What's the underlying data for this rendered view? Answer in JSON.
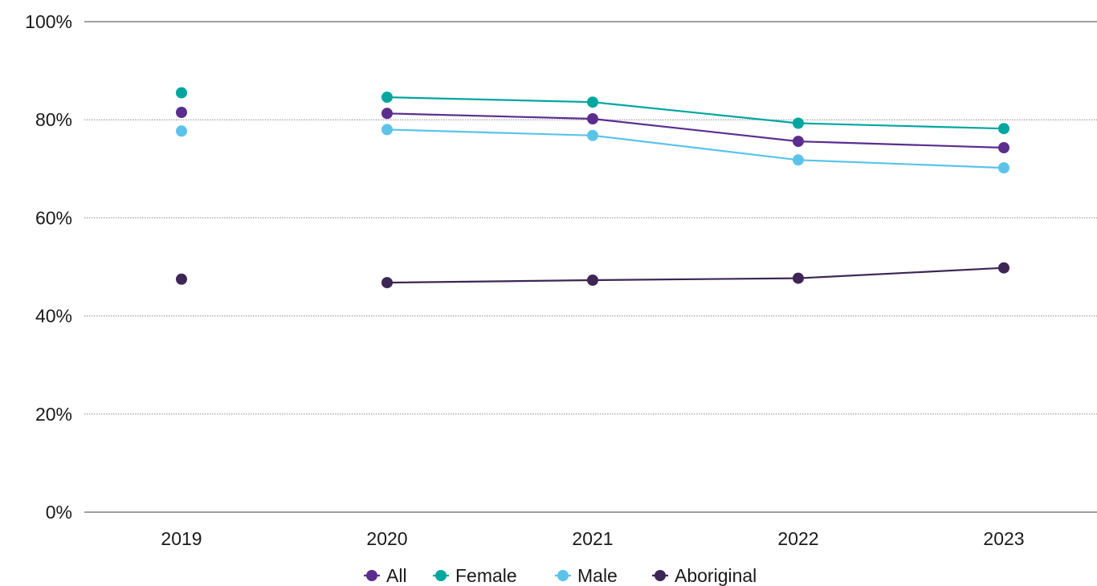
{
  "chart_data": {
    "type": "line",
    "title": "",
    "xlabel": "",
    "ylabel": "",
    "categories": [
      "2019",
      "2020",
      "2021",
      "2022",
      "2023"
    ],
    "ylim": [
      0,
      100
    ],
    "yticks": [
      0,
      20,
      40,
      60,
      80,
      100
    ],
    "ytick_labels": [
      "0%",
      "20%",
      "40%",
      "60%",
      "80%",
      "100%"
    ],
    "grid": "horizontal dotted",
    "legend_position": "bottom-center",
    "series": [
      {
        "name": "All",
        "color": "#5b2d8e",
        "values": [
          81.5,
          81.3,
          80.2,
          75.6,
          74.3
        ],
        "connect_from_index": 1
      },
      {
        "name": "Female",
        "color": "#00a6a0",
        "values": [
          85.5,
          84.6,
          83.6,
          79.3,
          78.2
        ],
        "connect_from_index": 1
      },
      {
        "name": "Male",
        "color": "#5bc3ea",
        "values": [
          77.7,
          78.0,
          76.8,
          71.8,
          70.2
        ],
        "connect_from_index": 1
      },
      {
        "name": "Aboriginal",
        "color": "#3d2655",
        "values": [
          47.5,
          46.8,
          47.3,
          47.7,
          49.8
        ],
        "connect_from_index": 1
      }
    ]
  }
}
